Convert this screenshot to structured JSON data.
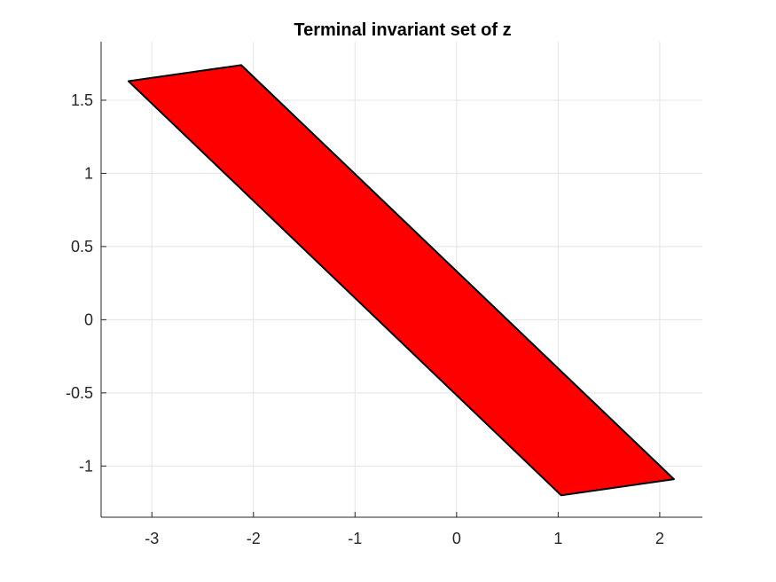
{
  "chart_data": {
    "type": "area",
    "title": "Terminal invariant set of z",
    "xlabel": "",
    "ylabel": "",
    "xlim": [
      -3.5,
      2.42
    ],
    "ylim": [
      -1.35,
      1.9
    ],
    "xticks": [
      -3,
      -2,
      -1,
      0,
      1,
      2
    ],
    "xtick_labels": [
      "-3",
      "-2",
      "-1",
      "0",
      "1",
      "2"
    ],
    "yticks": [
      -1,
      -0.5,
      0,
      0.5,
      1,
      1.5
    ],
    "ytick_labels": [
      "-1",
      "-0.5",
      "0",
      "0.5",
      "1",
      "1.5"
    ],
    "grid": true,
    "series": [
      {
        "polygon": [
          {
            "x": -3.23,
            "y": 1.63
          },
          {
            "x": -2.12,
            "y": 1.74
          },
          {
            "x": 2.14,
            "y": -1.09
          },
          {
            "x": 1.03,
            "y": -1.2
          }
        ],
        "fill_color": "#ff0000",
        "edge_color": "#000000"
      }
    ]
  },
  "colors": {
    "axis": "#262626",
    "grid": "#e3e3e3",
    "background": "#ffffff"
  }
}
